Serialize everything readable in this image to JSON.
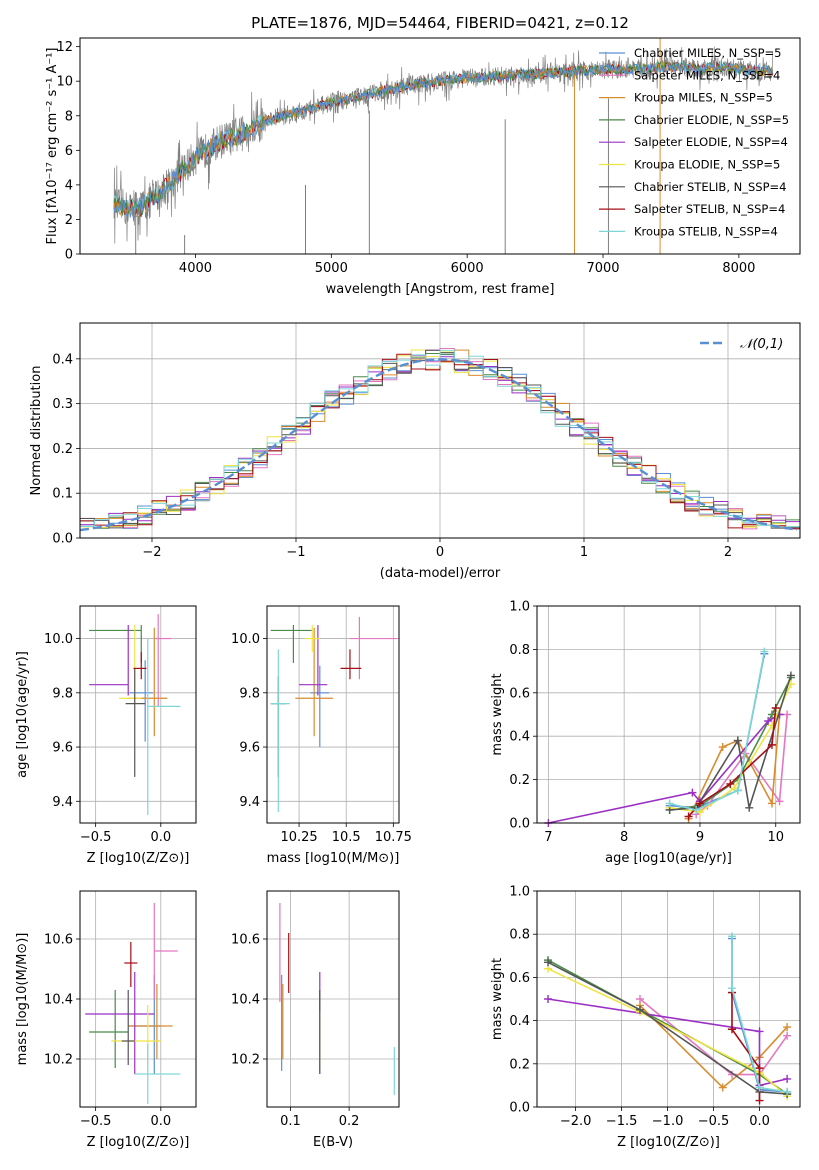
{
  "colors": [
    "#5b8fd4",
    "#e377c2",
    "#d98c2e",
    "#4a8a4a",
    "#9b30c4",
    "#f0e442",
    "#555555",
    "#a50f15",
    "#7fd6d6"
  ],
  "series_names": [
    "Chabrier MILES, N_SSP=5",
    "Salpeter MILES, N_SSP=4",
    "Kroupa MILES, N_SSP=5",
    "Chabrier ELODIE, N_SSP=5",
    "Salpeter ELODIE, N_SSP=4",
    "Kroupa ELODIE, N_SSP=5",
    "Chabrier STELIB, N_SSP=4",
    "Salpeter STELIB, N_SSP=4",
    "Kroupa STELIB, N_SSP=4"
  ],
  "chart_data": [
    {
      "type": "line",
      "panel": "spectrum",
      "title": "PLATE=1876, MJD=54464, FIBERID=0421, z=0.12",
      "xlabel": "wavelength [Angstrom, rest frame]",
      "ylabel": "Flux [fλ10⁻¹⁷ erg cm⁻² s⁻¹ A⁻¹]",
      "xlim": [
        3150,
        8450
      ],
      "ylim": [
        0,
        12.5
      ],
      "xticks": [
        4000,
        5000,
        6000,
        7000,
        8000
      ],
      "yticks": [
        0,
        2,
        4,
        6,
        8,
        10,
        12
      ],
      "legend": "top-right",
      "continuum": {
        "x": [
          3400,
          3450,
          3500,
          3600,
          3700,
          3800,
          3900,
          4000,
          4100,
          4200,
          4300,
          4400,
          4500,
          4600,
          4700,
          4800,
          4900,
          5000,
          5100,
          5200,
          5300,
          5400,
          5500,
          5600,
          5700,
          5800,
          5900,
          6000,
          6100,
          6200,
          6300,
          6400,
          6500,
          6600,
          6700,
          6800,
          6900,
          7000,
          7100,
          7200,
          7300,
          7400,
          7500,
          7600,
          7700,
          7800,
          7900,
          8000,
          8100,
          8200,
          8250
        ],
        "y": [
          2.9,
          2.8,
          2.6,
          2.7,
          3.3,
          4.0,
          4.8,
          5.6,
          6.1,
          6.6,
          6.8,
          7.2,
          7.6,
          7.9,
          8.1,
          8.3,
          8.5,
          8.8,
          8.9,
          9.1,
          9.3,
          9.5,
          9.6,
          9.8,
          9.9,
          10.0,
          10.1,
          10.2,
          10.2,
          10.3,
          10.3,
          10.4,
          10.4,
          10.5,
          10.5,
          10.6,
          10.6,
          10.7,
          10.7,
          10.7,
          10.7,
          10.8,
          10.8,
          10.8,
          10.7,
          10.8,
          10.8,
          10.7,
          10.6,
          10.6,
          10.6
        ]
      },
      "data_range": [
        3400,
        8250
      ],
      "spikes": [
        [
          3920,
          0,
          1.1
        ],
        [
          6790,
          0,
          10.4
        ],
        [
          7420,
          0,
          12.5
        ],
        [
          4810,
          0,
          4.0
        ],
        [
          5280,
          0,
          8.3
        ],
        [
          6280,
          0,
          7.8
        ],
        [
          7040,
          0,
          9.0
        ],
        [
          3560,
          0,
          3.5
        ]
      ]
    },
    {
      "type": "step",
      "panel": "residuals",
      "xlabel": "(data-model)/error",
      "ylabel": "Normed distribution",
      "xlim": [
        -2.5,
        2.5
      ],
      "ylim": [
        0,
        0.48
      ],
      "xticks": [
        -2,
        -1,
        0,
        1,
        2
      ],
      "yticks": [
        0.0,
        0.1,
        0.2,
        0.3,
        0.4
      ],
      "bin_width": 0.1,
      "curve_label": "𝒩(0,1)",
      "curve_color": "#5b8fd4",
      "legend": "top-right"
    },
    {
      "type": "scatter",
      "panel": "age_vs_Z",
      "xlabel": "Z [log10(Z/Z⊙)]",
      "ylabel": "age  [log10(age/yr)]",
      "xlim": [
        -0.62,
        0.27
      ],
      "ylim": [
        9.32,
        10.12
      ],
      "xticks": [
        -0.5,
        0.0
      ],
      "xticklabels": [
        "−0.5",
        "0.0"
      ],
      "yticks": [
        9.4,
        9.6,
        9.8,
        10.0
      ],
      "points": [
        {
          "x": -0.12,
          "y": 9.8,
          "xerr": [
            0.12,
            0.06
          ],
          "yerr": [
            0.18,
            0.12
          ]
        },
        {
          "x": -0.02,
          "y": 10.0,
          "xerr": [
            0.02,
            0.1
          ],
          "yerr": [
            0.25,
            0.09
          ]
        },
        {
          "x": -0.05,
          "y": 9.78,
          "xerr": [
            0.2,
            0.1
          ],
          "yerr": [
            0.14,
            0.26
          ]
        },
        {
          "x": -0.15,
          "y": 10.03,
          "xerr": [
            0.4,
            0.0
          ],
          "yerr": [
            0.12,
            0.02
          ]
        },
        {
          "x": -0.25,
          "y": 9.83,
          "xerr": [
            0.3,
            0.0
          ],
          "yerr": [
            0.04,
            0.22
          ]
        },
        {
          "x": -0.2,
          "y": 9.78,
          "xerr": [
            0.12,
            0.05
          ],
          "yerr": [
            0.02,
            0.27
          ]
        },
        {
          "x": -0.2,
          "y": 9.76,
          "xerr": [
            0.07,
            0.08
          ],
          "yerr": [
            0.27,
            0.13
          ]
        },
        {
          "x": -0.15,
          "y": 9.89,
          "xerr": [
            0.06,
            0.04
          ],
          "yerr": [
            0.04,
            0.06
          ]
        },
        {
          "x": -0.1,
          "y": 9.75,
          "xerr": [
            0.0,
            0.25
          ],
          "yerr": [
            0.4,
            0.25
          ]
        }
      ]
    },
    {
      "type": "scatter",
      "panel": "age_vs_mass",
      "xlabel": "mass [log10(M/M⊙)]",
      "ylabel": "",
      "xlim": [
        10.08,
        10.78
      ],
      "ylim": [
        9.32,
        10.12
      ],
      "xticks": [
        10.25,
        10.5,
        10.75
      ],
      "yticks": [
        9.4,
        9.6,
        9.8,
        10.0
      ],
      "points": [
        {
          "x": 10.36,
          "y": 9.8,
          "xerr": [
            0.05,
            0.05
          ],
          "yerr": [
            0.2,
            0.1
          ]
        },
        {
          "x": 10.57,
          "y": 10.0,
          "xerr": [
            0.05,
            0.2
          ],
          "yerr": [
            0.15,
            0.08
          ]
        },
        {
          "x": 10.33,
          "y": 9.78,
          "xerr": [
            0.1,
            0.1
          ],
          "yerr": [
            0.14,
            0.26
          ]
        },
        {
          "x": 10.22,
          "y": 10.03,
          "xerr": [
            0.12,
            0.1
          ],
          "yerr": [
            0.12,
            0.02
          ]
        },
        {
          "x": 10.35,
          "y": 9.83,
          "xerr": [
            0.1,
            0.05
          ],
          "yerr": [
            0.04,
            0.22
          ]
        },
        {
          "x": 10.32,
          "y": 10.0,
          "xerr": [
            0.04,
            0.04
          ],
          "yerr": [
            0.05,
            0.05
          ]
        },
        {
          "x": 10.14,
          "y": 9.76,
          "xerr": [
            0.04,
            0.04
          ],
          "yerr": [
            0.27,
            0.1
          ]
        },
        {
          "x": 10.52,
          "y": 9.89,
          "xerr": [
            0.05,
            0.06
          ],
          "yerr": [
            0.04,
            0.07
          ]
        },
        {
          "x": 10.14,
          "y": 9.76,
          "xerr": [
            0.04,
            0.06
          ],
          "yerr": [
            0.4,
            0.2
          ]
        }
      ]
    },
    {
      "type": "line",
      "panel": "massweight_vs_age",
      "xlabel": "age  [log10(age/yr)]",
      "ylabel": "mass weight",
      "xlim": [
        6.85,
        10.32
      ],
      "ylim": [
        0,
        1.0
      ],
      "xticks": [
        7,
        8,
        9,
        10
      ],
      "yticks": [
        0.0,
        0.2,
        0.4,
        0.6,
        0.8,
        1.0
      ],
      "series": [
        {
          "x": [
            8.6,
            8.95,
            9.5,
            9.85
          ],
          "y": [
            0.08,
            0.07,
            0.15,
            0.78
          ]
        },
        {
          "x": [
            8.95,
            9.1,
            9.6,
            10.05,
            10.15
          ],
          "y": [
            0.04,
            0.08,
            0.32,
            0.1,
            0.5
          ]
        },
        {
          "x": [
            8.85,
            9.3,
            9.5,
            9.95,
            10.05
          ],
          "y": [
            0.02,
            0.35,
            0.38,
            0.09,
            0.5
          ]
        },
        {
          "x": [
            8.6,
            9.0,
            9.5,
            9.95,
            10.2
          ],
          "y": [
            0.06,
            0.08,
            0.2,
            0.5,
            0.67
          ]
        },
        {
          "x": [
            7.0,
            8.9,
            9.0,
            9.9,
            10.05
          ],
          "y": [
            0.0,
            0.14,
            0.1,
            0.47,
            0.5
          ]
        },
        {
          "x": [
            8.6,
            9.0,
            9.45,
            9.95,
            10.2
          ],
          "y": [
            0.07,
            0.05,
            0.16,
            0.45,
            0.64
          ]
        },
        {
          "x": [
            8.6,
            8.95,
            9.5,
            9.65,
            10.2
          ],
          "y": [
            0.06,
            0.07,
            0.38,
            0.07,
            0.68
          ]
        },
        {
          "x": [
            8.85,
            9.0,
            9.4,
            9.95,
            10.0
          ],
          "y": [
            0.03,
            0.09,
            0.18,
            0.36,
            0.53
          ]
        },
        {
          "x": [
            8.6,
            8.95,
            9.5,
            9.85
          ],
          "y": [
            0.09,
            0.06,
            0.15,
            0.79
          ]
        }
      ]
    },
    {
      "type": "scatter",
      "panel": "mass_vs_Z",
      "xlabel": "Z [log10(Z/Z⊙)]",
      "ylabel": "mass [log10(M/M⊙)]",
      "xlim": [
        -0.62,
        0.27
      ],
      "ylim": [
        10.04,
        10.76
      ],
      "xticks": [
        -0.5,
        0.0
      ],
      "xticklabels": [
        "−0.5",
        "0.0"
      ],
      "yticks": [
        10.2,
        10.4,
        10.6
      ],
      "points": [
        {
          "x": -0.05,
          "y": 10.31,
          "xerr": [
            0.2,
            0.05
          ],
          "yerr": [
            0.16,
            0.17
          ]
        },
        {
          "x": -0.05,
          "y": 10.56,
          "xerr": [
            0.0,
            0.18
          ],
          "yerr": [
            0.16,
            0.16
          ]
        },
        {
          "x": -0.03,
          "y": 10.31,
          "xerr": [
            0.22,
            0.12
          ],
          "yerr": [
            0.11,
            0.14
          ]
        },
        {
          "x": -0.35,
          "y": 10.29,
          "xerr": [
            0.2,
            0.1
          ],
          "yerr": [
            0.12,
            0.14
          ]
        },
        {
          "x": -0.2,
          "y": 10.35,
          "xerr": [
            0.38,
            0.15
          ],
          "yerr": [
            0.2,
            0.14
          ]
        },
        {
          "x": -0.1,
          "y": 10.26,
          "xerr": [
            0.28,
            0.1
          ],
          "yerr": [
            0.08,
            0.12
          ]
        },
        {
          "x": -0.25,
          "y": 10.26,
          "xerr": [
            0.05,
            0.05
          ],
          "yerr": [
            0.08,
            0.17
          ]
        },
        {
          "x": -0.23,
          "y": 10.52,
          "xerr": [
            0.05,
            0.05
          ],
          "yerr": [
            0.08,
            0.07
          ]
        },
        {
          "x": -0.1,
          "y": 10.15,
          "xerr": [
            0.1,
            0.25
          ],
          "yerr": [
            0.1,
            0.1
          ]
        }
      ]
    },
    {
      "type": "errorbar",
      "panel": "mass_vs_EBV",
      "xlabel": "E(B-V)",
      "ylabel": "",
      "xlim": [
        0.06,
        0.285
      ],
      "ylim": [
        10.04,
        10.76
      ],
      "xticks": [
        0.1,
        0.2
      ],
      "yticks": [
        10.2,
        10.4,
        10.6
      ],
      "points": [
        {
          "x": 0.085,
          "y": 10.31,
          "yerr": [
            0.15,
            0.17
          ]
        },
        {
          "x": 0.082,
          "y": 10.56,
          "yerr": [
            0.17,
            0.16
          ]
        },
        {
          "x": 0.087,
          "y": 10.31,
          "yerr": [
            0.11,
            0.14
          ]
        },
        {
          "x": 0.15,
          "y": 10.29,
          "yerr": [
            0.14,
            0.14
          ]
        },
        {
          "x": 0.15,
          "y": 10.35,
          "yerr": [
            0.2,
            0.14
          ]
        },
        {
          "x": 0.15,
          "y": 10.26,
          "yerr": [
            0.1,
            0.1
          ]
        },
        {
          "x": 0.15,
          "y": 10.26,
          "yerr": [
            0.1,
            0.17
          ]
        },
        {
          "x": 0.097,
          "y": 10.52,
          "yerr": [
            0.1,
            0.1
          ]
        },
        {
          "x": 0.277,
          "y": 10.16,
          "yerr": [
            0.08,
            0.08
          ]
        }
      ]
    },
    {
      "type": "line",
      "panel": "massweight_vs_Z",
      "xlabel": "Z [log10(Z/Z⊙)]",
      "ylabel": "mass weight",
      "xlim": [
        -2.42,
        0.44
      ],
      "ylim": [
        0,
        1.0
      ],
      "xticks": [
        -2.0,
        -1.5,
        -1.0,
        -0.5,
        0.0
      ],
      "xticklabels": [
        "−2.0",
        "−1.5",
        "−1.0",
        "−0.5",
        "0.0"
      ],
      "yticks": [
        0.0,
        0.2,
        0.4,
        0.6,
        0.8,
        1.0
      ],
      "series": [
        {
          "x": [
            -0.3,
            -0.3,
            0.0,
            0.3
          ],
          "y": [
            0.78,
            0.53,
            0.08,
            0.07
          ]
        },
        {
          "x": [
            -1.3,
            -0.3,
            0.0,
            0.3
          ],
          "y": [
            0.5,
            0.15,
            0.15,
            0.33
          ]
        },
        {
          "x": [
            -1.3,
            -0.4,
            0.0,
            0.3
          ],
          "y": [
            0.47,
            0.09,
            0.23,
            0.37
          ]
        },
        {
          "x": [
            -2.3,
            -1.3,
            0.0,
            0.3
          ],
          "y": [
            0.68,
            0.45,
            0.15,
            0.06
          ]
        },
        {
          "x": [
            -2.3,
            0.0,
            0.0,
            0.3
          ],
          "y": [
            0.5,
            0.35,
            0.1,
            0.13
          ]
        },
        {
          "x": [
            -2.3,
            -1.3,
            0.0,
            0.3
          ],
          "y": [
            0.64,
            0.44,
            0.16,
            0.05
          ]
        },
        {
          "x": [
            -2.3,
            -1.3,
            0.0,
            0.3
          ],
          "y": [
            0.67,
            0.45,
            0.07,
            0.06
          ]
        },
        {
          "x": [
            -0.3,
            -0.3,
            0.0,
            0.0
          ],
          "y": [
            0.53,
            0.36,
            0.18,
            0.03
          ]
        },
        {
          "x": [
            -0.3,
            -0.3,
            0.0,
            0.3
          ],
          "y": [
            0.79,
            0.55,
            0.09,
            0.07
          ]
        }
      ]
    }
  ]
}
